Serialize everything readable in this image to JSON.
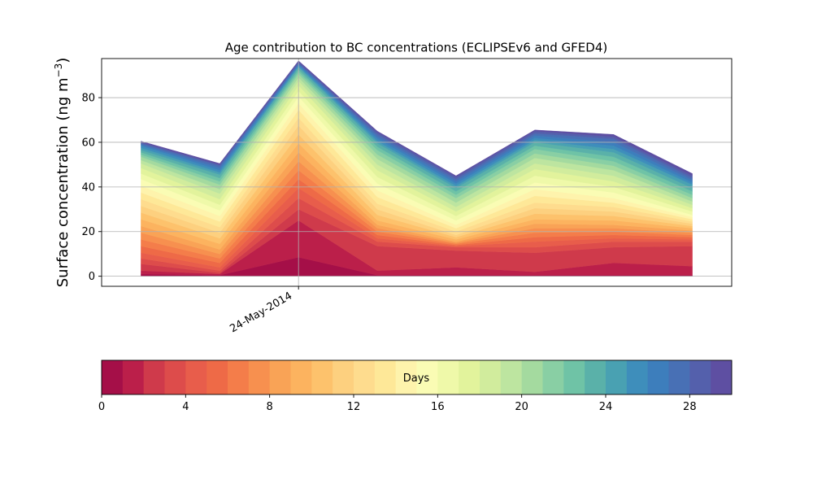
{
  "chart_data": [
    {
      "type": "area",
      "stacked": true,
      "title": "Age contribution to BC concentrations (ECLIPSEv6 and GFED4)",
      "ylabel_base": "Surface concentration (ng m",
      "ylabel_sup": "−3",
      "ylabel_close": ")",
      "xlabel": "",
      "x": [
        "2014-05-20",
        "2014-05-22",
        "2014-05-24",
        "2014-05-26",
        "2014-05-28",
        "2014-05-30",
        "2014-06-01",
        "2014-06-03"
      ],
      "xlim": [
        "2014-05-19",
        "2014-06-04"
      ],
      "x_tick_label": "24-May-2014",
      "ylim": [
        -4.5,
        97.5
      ],
      "y_ticks": [
        0,
        20,
        40,
        60,
        80
      ],
      "grid": true,
      "series": [
        {
          "values": [
            1.0,
            0.5,
            8.5,
            0.5,
            0.5,
            0.5,
            0.5,
            0.5
          ]
        },
        {
          "values": [
            1.5,
            0.5,
            16.5,
            2.0,
            3.5,
            1.5,
            5.5,
            4.0
          ]
        },
        {
          "values": [
            3.0,
            0.5,
            5.0,
            11.0,
            7.5,
            8.5,
            7.0,
            9.0
          ]
        },
        {
          "values": [
            2.5,
            1.0,
            5.0,
            2.0,
            1.5,
            2.5,
            2.5,
            2.0
          ]
        },
        {
          "values": [
            2.5,
            1.5,
            4.5,
            1.5,
            0.5,
            2.5,
            1.5,
            1.0
          ]
        },
        {
          "values": [
            3.0,
            2.0,
            4.0,
            1.5,
            0.5,
            2.0,
            1.5,
            1.0
          ]
        },
        {
          "values": [
            3.0,
            2.0,
            4.0,
            1.5,
            0.5,
            2.0,
            1.5,
            1.0
          ]
        },
        {
          "values": [
            3.0,
            2.0,
            4.0,
            1.5,
            0.5,
            2.0,
            1.5,
            1.0
          ]
        },
        {
          "values": [
            3.0,
            2.0,
            4.0,
            1.5,
            0.5,
            2.0,
            1.5,
            1.0
          ]
        },
        {
          "values": [
            3.0,
            2.5,
            4.0,
            2.0,
            1.0,
            2.0,
            2.0,
            1.0
          ]
        },
        {
          "values": [
            3.0,
            2.5,
            4.0,
            2.5,
            1.0,
            2.5,
            2.0,
            1.0
          ]
        },
        {
          "values": [
            3.0,
            2.5,
            4.0,
            2.5,
            1.0,
            2.5,
            2.0,
            1.0
          ]
        },
        {
          "values": [
            3.0,
            2.5,
            3.5,
            2.5,
            1.5,
            2.5,
            2.0,
            1.0
          ]
        },
        {
          "values": [
            3.0,
            2.5,
            3.5,
            3.0,
            1.5,
            3.0,
            2.0,
            1.0
          ]
        },
        {
          "values": [
            3.0,
            2.5,
            3.0,
            3.0,
            1.5,
            3.0,
            2.0,
            1.0
          ]
        },
        {
          "values": [
            3.0,
            2.5,
            3.0,
            3.0,
            2.0,
            3.0,
            2.5,
            1.0
          ]
        },
        {
          "values": [
            2.5,
            2.5,
            2.5,
            3.0,
            2.0,
            3.0,
            2.5,
            1.5
          ]
        },
        {
          "values": [
            2.5,
            2.5,
            2.5,
            3.0,
            2.0,
            3.0,
            2.5,
            1.5
          ]
        },
        {
          "values": [
            2.0,
            2.5,
            2.0,
            2.5,
            2.0,
            2.5,
            2.5,
            1.5
          ]
        },
        {
          "values": [
            1.5,
            2.0,
            1.5,
            2.5,
            2.0,
            2.5,
            2.5,
            1.5
          ]
        },
        {
          "values": [
            1.5,
            2.0,
            1.5,
            2.0,
            2.0,
            2.0,
            2.0,
            1.5
          ]
        },
        {
          "values": [
            1.0,
            1.5,
            1.0,
            2.0,
            1.5,
            2.0,
            2.0,
            1.5
          ]
        },
        {
          "values": [
            1.0,
            1.5,
            1.0,
            1.5,
            1.5,
            1.5,
            2.0,
            1.5
          ]
        },
        {
          "values": [
            1.0,
            1.5,
            1.0,
            1.5,
            1.5,
            1.5,
            2.0,
            1.5
          ]
        },
        {
          "values": [
            1.0,
            1.0,
            0.5,
            1.0,
            1.0,
            1.0,
            1.5,
            1.5
          ]
        },
        {
          "values": [
            1.0,
            1.0,
            0.5,
            1.0,
            1.0,
            1.0,
            1.5,
            1.0
          ]
        },
        {
          "values": [
            0.5,
            1.0,
            0.5,
            1.0,
            1.0,
            1.0,
            1.5,
            1.0
          ]
        },
        {
          "values": [
            0.5,
            1.0,
            0.5,
            1.0,
            1.0,
            1.0,
            1.5,
            1.0
          ]
        },
        {
          "values": [
            0.5,
            0.5,
            0.5,
            1.0,
            1.0,
            1.0,
            1.0,
            1.0
          ]
        },
        {
          "values": [
            0.5,
            0.5,
            0.5,
            0.5,
            0.5,
            0.5,
            1.0,
            1.0
          ]
        }
      ]
    },
    {
      "type": "colorbar",
      "label": "Days",
      "range": [
        0,
        30
      ],
      "tick_values": [
        0,
        4,
        8,
        12,
        16,
        20,
        24,
        28
      ],
      "colors": [
        "#a50f48",
        "#bb1f4a",
        "#cf3a4b",
        "#dd4c4b",
        "#e85d4b",
        "#ee6a47",
        "#f47d4a",
        "#f7904f",
        "#f9a356",
        "#fcb35f",
        "#fdc26c",
        "#fdd07f",
        "#fedc8e",
        "#fee898",
        "#fef3ac",
        "#fafcb4",
        "#eff9a9",
        "#e2f39c",
        "#d1ec9d",
        "#bde5a0",
        "#a4da9f",
        "#89cfa4",
        "#6fc3a6",
        "#5ab1a9",
        "#49a1b2",
        "#3e8ebb",
        "#3d7ebc",
        "#4870b5",
        "#5460ac",
        "#5e4fa2"
      ]
    }
  ]
}
